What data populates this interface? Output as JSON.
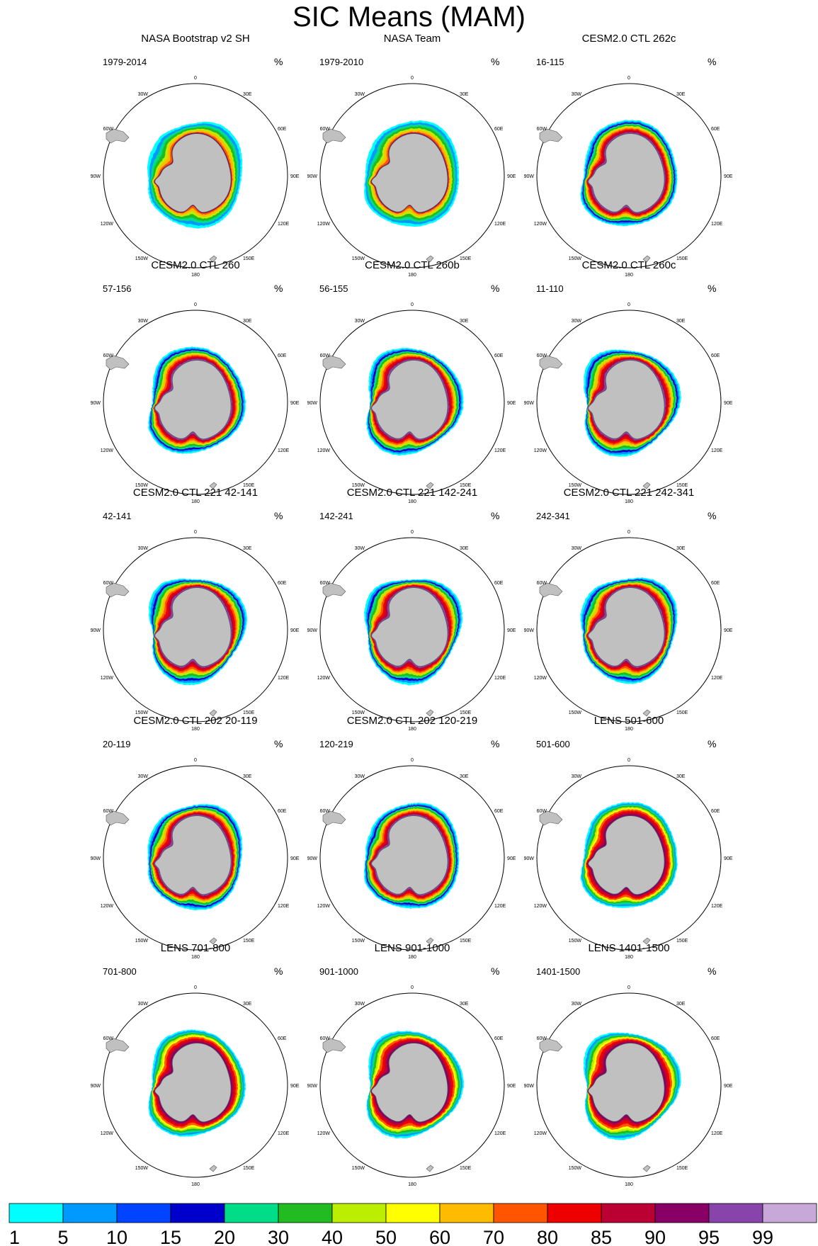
{
  "chart_data": {
    "type": "polar-map-panels",
    "title": "SIC Means (MAM)",
    "units": "%",
    "longitude_labels": [
      "0",
      "30E",
      "60E",
      "90E",
      "120E",
      "150E",
      "180",
      "150W",
      "120W",
      "90W",
      "60W",
      "30W"
    ],
    "panels": [
      {
        "title": "NASA Bootstrap v2 SH",
        "years": "1979-2014",
        "style": "obs"
      },
      {
        "title": "NASA Team",
        "years": "1979-2010",
        "style": "obs"
      },
      {
        "title": "CESM2.0 CTL 262c",
        "years": "16-115",
        "style": "model"
      },
      {
        "title": "CESM2.0 CTL 260",
        "years": "57-156",
        "style": "model"
      },
      {
        "title": "CESM2.0 CTL 260b",
        "years": "56-155",
        "style": "model"
      },
      {
        "title": "CESM2.0 CTL 260c",
        "years": "11-110",
        "style": "model"
      },
      {
        "title": "CESM2.0 CTL 221 42-141",
        "years": "42-141",
        "style": "model"
      },
      {
        "title": "CESM2.0 CTL 221 142-241",
        "years": "142-241",
        "style": "model"
      },
      {
        "title": "CESM2.0 CTL 221 242-341",
        "years": "242-341",
        "style": "model"
      },
      {
        "title": "CESM2.0 CTL 202 20-119",
        "years": "20-119",
        "style": "model"
      },
      {
        "title": "CESM2.0 CTL 202 120-219",
        "years": "120-219",
        "style": "model"
      },
      {
        "title": "LENS 501-600",
        "years": "501-600",
        "style": "lens"
      },
      {
        "title": "LENS 701-800",
        "years": "701-800",
        "style": "lens"
      },
      {
        "title": "LENS 901-1000",
        "years": "901-1000",
        "style": "lens"
      },
      {
        "title": "LENS 1401-1500",
        "years": "1401-1500",
        "style": "lens"
      }
    ],
    "colorbar": {
      "labels": [
        "1",
        "5",
        "10",
        "15",
        "20",
        "30",
        "40",
        "50",
        "60",
        "70",
        "80",
        "85",
        "90",
        "95",
        "99"
      ],
      "colors": [
        "#00ffff",
        "#0099ff",
        "#0044ff",
        "#0000cc",
        "#00dd88",
        "#22bb22",
        "#bbee00",
        "#ffff00",
        "#ffbb00",
        "#ff5500",
        "#ee0000",
        "#bb0033",
        "#880066",
        "#8844aa",
        "#c8a8d8"
      ]
    },
    "land_color": "#c0c0c0"
  }
}
